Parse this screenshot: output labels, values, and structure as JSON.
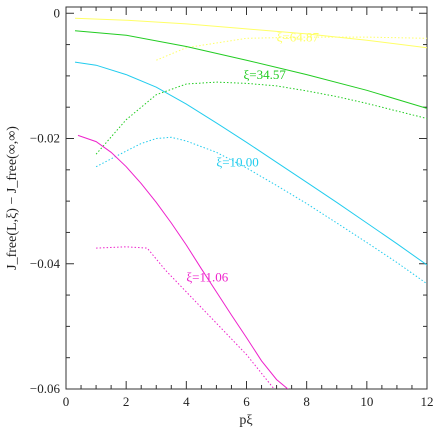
{
  "chart_data": {
    "type": "line",
    "xlabel": "pξ",
    "ylabel": "J_free(L,ξ) − J_free(∞,∞)",
    "xlim": [
      0,
      12
    ],
    "ylim": [
      -0.06,
      0.001
    ],
    "x_ticks": [
      0,
      2,
      4,
      6,
      8,
      10,
      12
    ],
    "x_tick_labels": [
      "0",
      "2",
      "4",
      "6",
      "8",
      "10",
      "12"
    ],
    "y_ticks": [
      0,
      -0.02,
      -0.04,
      -0.06
    ],
    "y_tick_labels": [
      "0",
      "−0.02",
      "−0.04",
      "−0.06"
    ],
    "grid": false,
    "series": [
      {
        "name": "ξ=64.87",
        "color": "#ffff66",
        "solid": {
          "x": [
            0.3,
            2,
            4,
            6,
            8,
            10,
            12
          ],
          "y": [
            -0.0008,
            -0.0011,
            -0.0017,
            -0.0025,
            -0.0033,
            -0.0043,
            -0.0055
          ]
        },
        "dotted": {
          "x": [
            3,
            4,
            6,
            8,
            10,
            12
          ],
          "y": [
            -0.0075,
            -0.0055,
            -0.004,
            -0.0038,
            -0.0038,
            -0.004
          ]
        }
      },
      {
        "name": "ξ=34.57",
        "color": "#22cc22",
        "solid": {
          "x": [
            0.3,
            2,
            4,
            6,
            8,
            10,
            12
          ],
          "y": [
            -0.0028,
            -0.0035,
            -0.0053,
            -0.0075,
            -0.0098,
            -0.0123,
            -0.0152
          ]
        },
        "dotted": {
          "x": [
            1,
            2,
            3,
            4,
            5,
            6,
            7,
            8,
            9,
            10,
            11,
            12
          ],
          "y": [
            -0.0225,
            -0.017,
            -0.013,
            -0.0113,
            -0.011,
            -0.0112,
            -0.0116,
            -0.0124,
            -0.0133,
            -0.0144,
            -0.0156,
            -0.0168
          ]
        }
      },
      {
        "name": "ξ=10.00",
        "color": "#22ccee",
        "solid": {
          "x": [
            0.3,
            1,
            2,
            3,
            4,
            5,
            6,
            7,
            8,
            9,
            10,
            11,
            12
          ],
          "y": [
            -0.0078,
            -0.0083,
            -0.0098,
            -0.0118,
            -0.0145,
            -0.0175,
            -0.0206,
            -0.0238,
            -0.027,
            -0.0302,
            -0.0335,
            -0.0368,
            -0.0402
          ]
        },
        "dotted": {
          "x": [
            1,
            2,
            2.5,
            3,
            3.5,
            4,
            5,
            6,
            7,
            8,
            9,
            10,
            11,
            12
          ],
          "y": [
            -0.0245,
            -0.022,
            -0.0208,
            -0.02,
            -0.0198,
            -0.0204,
            -0.0222,
            -0.0247,
            -0.0275,
            -0.0304,
            -0.0335,
            -0.0366,
            -0.0398,
            -0.0432
          ]
        }
      },
      {
        "name": "ξ=11.06",
        "color": "#ee22cc",
        "solid": {
          "x": [
            0.4,
            1,
            1.5,
            2,
            2.5,
            3,
            3.5,
            4,
            4.5,
            5,
            5.5,
            6,
            6.5,
            7,
            7.5
          ],
          "y": [
            -0.0195,
            -0.0205,
            -0.0222,
            -0.0245,
            -0.0272,
            -0.0302,
            -0.0335,
            -0.037,
            -0.0408,
            -0.0445,
            -0.0482,
            -0.0518,
            -0.0555,
            -0.0585,
            -0.0605
          ]
        },
        "dotted": {
          "x": [
            1,
            2,
            2.7,
            3.3,
            4,
            5,
            6,
            7
          ],
          "y": [
            -0.0375,
            -0.0373,
            -0.0375,
            -0.041,
            -0.0445,
            -0.0495,
            -0.0545,
            -0.0605
          ]
        }
      }
    ],
    "annotations": [
      {
        "text": "ξ=64.87",
        "x": 7.0,
        "y": -0.0045,
        "color": "#ffff66"
      },
      {
        "text": "ξ=34.57",
        "x": 5.9,
        "y": -0.0105,
        "color": "#22cc22"
      },
      {
        "text": "ξ=10.00",
        "x": 5.0,
        "y": -0.0245,
        "color": "#22ccee"
      },
      {
        "text": "ξ=11.06",
        "x": 4.0,
        "y": -0.0428,
        "color": "#ee22cc"
      }
    ]
  }
}
